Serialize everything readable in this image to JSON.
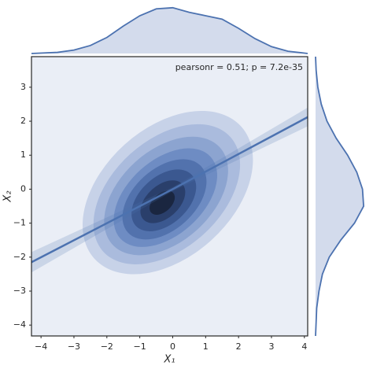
{
  "chart_data": {
    "type": "joint",
    "annotation": "pearsonr = 0.51; p = 7.2e-35",
    "xlabel": "X₁",
    "ylabel": "X₂",
    "xlim": [
      -4.29,
      4.1
    ],
    "ylim": [
      -4.32,
      3.9
    ],
    "xticks": [
      {
        "value": -4,
        "label": "−4"
      },
      {
        "value": -3,
        "label": "−3"
      },
      {
        "value": -2,
        "label": "−2"
      },
      {
        "value": -1,
        "label": "−1"
      },
      0,
      1,
      2,
      3,
      4
    ],
    "yticks": [
      {
        "value": -4,
        "label": "−4"
      },
      {
        "value": -3,
        "label": "−3"
      },
      {
        "value": -2,
        "label": "−2"
      },
      {
        "value": -1,
        "label": "−1"
      },
      0,
      1,
      2,
      3
    ],
    "background": "#eaeef6",
    "line_color": "#4c72b0",
    "contours": [
      {
        "cx": -0.15,
        "cy": -0.1,
        "rx": 3.0,
        "ry": 1.9,
        "angle": 42,
        "color": "#c7d2e8"
      },
      {
        "cx": -0.18,
        "cy": -0.15,
        "rx": 2.6,
        "ry": 1.6,
        "angle": 42,
        "color": "#aabbdd"
      },
      {
        "cx": -0.2,
        "cy": -0.2,
        "rx": 2.2,
        "ry": 1.35,
        "angle": 42,
        "color": "#8ca4d0"
      },
      {
        "cx": -0.22,
        "cy": -0.25,
        "rx": 1.85,
        "ry": 1.1,
        "angle": 42,
        "color": "#6e8cc3"
      },
      {
        "cx": -0.25,
        "cy": -0.3,
        "rx": 1.5,
        "ry": 0.9,
        "angle": 42,
        "color": "#5272ad"
      },
      {
        "cx": -0.27,
        "cy": -0.33,
        "rx": 1.15,
        "ry": 0.7,
        "angle": 42,
        "color": "#3b5890"
      },
      {
        "cx": -0.3,
        "cy": -0.37,
        "rx": 0.8,
        "ry": 0.48,
        "angle": 42,
        "color": "#2a3f6b"
      },
      {
        "cx": -0.32,
        "cy": -0.4,
        "rx": 0.45,
        "ry": 0.27,
        "angle": 42,
        "color": "#1a2640"
      }
    ],
    "regression": {
      "x": [
        -4.29,
        0,
        4.1
      ],
      "y": [
        -2.15,
        0.0,
        2.12
      ],
      "ci_low": [
        -2.45,
        -0.06,
        1.85
      ],
      "ci_high": [
        -1.85,
        0.06,
        2.4
      ]
    },
    "top_density": {
      "x": [
        -4.29,
        -3.5,
        -3,
        -2.5,
        -2,
        -1.5,
        -1,
        -0.5,
        0,
        0.5,
        1,
        1.5,
        2,
        2.5,
        3,
        3.5,
        4.1
      ],
      "values": [
        0,
        0.01,
        0.03,
        0.07,
        0.14,
        0.24,
        0.33,
        0.39,
        0.4,
        0.36,
        0.33,
        0.3,
        0.22,
        0.13,
        0.06,
        0.02,
        0
      ]
    },
    "right_density": {
      "y": [
        -4.32,
        -3.5,
        -3,
        -2.5,
        -2,
        -1.5,
        -1,
        -0.5,
        0,
        0.5,
        1,
        1.5,
        2,
        2.5,
        3,
        3.5,
        3.9
      ],
      "values": [
        0,
        0.01,
        0.03,
        0.06,
        0.12,
        0.22,
        0.34,
        0.42,
        0.41,
        0.36,
        0.28,
        0.18,
        0.1,
        0.05,
        0.02,
        0.005,
        0
      ]
    },
    "density_lim": [
      0,
      0.44
    ],
    "density_fill": "#d3dbec"
  }
}
